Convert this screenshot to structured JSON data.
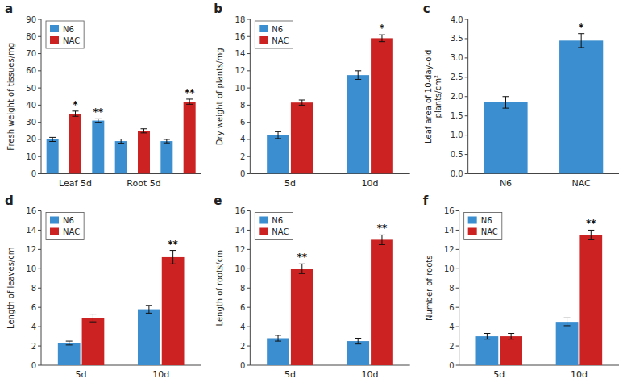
{
  "chart_data": [
    {
      "type": "bar",
      "title": "a",
      "y_label": "Fresh weight of tissues/mg",
      "categories": [
        null,
        "Leaf 5d",
        null,
        null,
        "Root 5d",
        null,
        null
      ],
      "series": [
        {
          "name": "N6",
          "color": "#3B8ED0",
          "values": [
            20,
            null,
            31,
            19,
            null,
            19,
            null
          ],
          "errors": [
            1.2,
            null,
            1.0,
            1.2,
            null,
            1.0,
            null
          ],
          "annotations": [
            null,
            null,
            "**",
            null,
            null,
            null,
            null
          ]
        },
        {
          "name": "NAC",
          "color": "#CC2222",
          "values": [
            null,
            35,
            null,
            null,
            25,
            null,
            42
          ],
          "errors": [
            null,
            1.5,
            null,
            null,
            1.2,
            null,
            1.5
          ],
          "annotations": [
            null,
            "*",
            null,
            null,
            null,
            null,
            "**"
          ]
        }
      ],
      "ylim": [
        0,
        90
      ],
      "yticks": [
        0,
        10,
        20,
        30,
        40,
        50,
        60,
        70,
        80,
        90
      ],
      "legend": "upper left",
      "grid": false
    },
    {
      "type": "bar",
      "title": "b",
      "y_label": "Dry weight of plants/mg",
      "categories": [
        "5d",
        "10d"
      ],
      "series": [
        {
          "name": "N6",
          "color": "#3B8ED0",
          "values": [
            4.5,
            11.5
          ],
          "errors": [
            0.4,
            0.5
          ]
        },
        {
          "name": "NAC",
          "color": "#CC2222",
          "values": [
            8.3,
            15.8
          ],
          "errors": [
            0.3,
            0.4
          ],
          "annotations": [
            null,
            "*"
          ]
        }
      ],
      "ylim": [
        0,
        18
      ],
      "yticks": [
        0,
        2,
        4,
        6,
        8,
        10,
        12,
        14,
        16,
        18
      ],
      "legend": "upper left",
      "grid": false
    },
    {
      "type": "bar",
      "title": "c",
      "y_label": "Leaf area of 10-day-old\nplants/cm²",
      "categories": [
        "N6",
        "NAC"
      ],
      "values": [
        1.85,
        3.45
      ],
      "errors": [
        0.15,
        0.18
      ],
      "annotations": [
        null,
        "*"
      ],
      "color": "#3B8ED0",
      "ylim": [
        0,
        4
      ],
      "yticks": [
        {
          "value": 0,
          "label": "0.0"
        },
        0.5,
        {
          "value": 1,
          "label": "1.0"
        },
        1.5,
        {
          "value": 2,
          "label": "2.0"
        },
        2.5,
        {
          "value": 3,
          "label": "3.0"
        },
        3.5,
        {
          "value": 4,
          "label": "4.0"
        }
      ],
      "grid": false
    },
    {
      "type": "bar",
      "title": "d",
      "y_label": "Length of leaves/cm",
      "categories": [
        "5d",
        "10d"
      ],
      "series": [
        {
          "name": "N6",
          "color": "#3B8ED0",
          "values": [
            2.3,
            5.8
          ],
          "errors": [
            0.2,
            0.4
          ]
        },
        {
          "name": "NAC",
          "color": "#CC2222",
          "values": [
            4.9,
            11.2
          ],
          "errors": [
            0.4,
            0.7
          ],
          "annotations": [
            null,
            "**"
          ]
        }
      ],
      "ylim": [
        0,
        16
      ],
      "yticks": [
        0,
        2,
        4,
        6,
        8,
        10,
        12,
        14,
        16
      ],
      "legend": "upper left",
      "grid": false
    },
    {
      "type": "bar",
      "title": "e",
      "y_label": "Length of roots/cm",
      "categories": [
        "5d",
        "10d"
      ],
      "series": [
        {
          "name": "N6",
          "color": "#3B8ED0",
          "values": [
            2.8,
            2.5
          ],
          "errors": [
            0.3,
            0.3
          ]
        },
        {
          "name": "NAC",
          "color": "#CC2222",
          "values": [
            10.0,
            13.0
          ],
          "errors": [
            0.5,
            0.5
          ],
          "annotations": [
            "**",
            "**"
          ]
        }
      ],
      "ylim": [
        0,
        16
      ],
      "yticks": [
        0,
        2,
        4,
        6,
        8,
        10,
        12,
        14,
        16
      ],
      "legend": "upper left",
      "grid": false
    },
    {
      "type": "bar",
      "title": "f",
      "y_label": "Number of roots",
      "categories": [
        "5d",
        "10d"
      ],
      "series": [
        {
          "name": "N6",
          "color": "#3B8ED0",
          "values": [
            3.0,
            4.5
          ],
          "errors": [
            0.3,
            0.4
          ]
        },
        {
          "name": "NAC",
          "color": "#CC2222",
          "values": [
            3.0,
            13.5
          ],
          "errors": [
            0.3,
            0.5
          ],
          "annotations": [
            null,
            "**"
          ]
        }
      ],
      "ylim": [
        0,
        16
      ],
      "yticks": [
        0,
        2,
        4,
        6,
        8,
        10,
        12,
        14,
        16
      ],
      "legend": "upper left",
      "grid": false
    }
  ]
}
